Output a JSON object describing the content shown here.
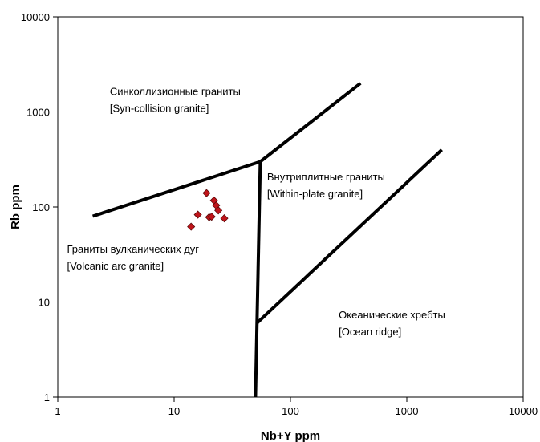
{
  "chart_data": {
    "type": "scatter",
    "title": "",
    "xlabel": "Nb+Y ppm",
    "ylabel": "Rb ppm",
    "xscale": "log",
    "yscale": "log",
    "xlim": [
      1,
      10000
    ],
    "ylim": [
      1,
      10000
    ],
    "grid": false,
    "legend": "none",
    "x_tick_labels": [
      "1",
      "10",
      "100",
      "1000",
      "10000"
    ],
    "y_tick_labels": [
      "1",
      "10",
      "100",
      "1000",
      "10000"
    ],
    "x_ticks": [
      1,
      10,
      100,
      1000,
      10000
    ],
    "y_ticks": [
      1,
      10,
      100,
      1000,
      10000
    ],
    "marker_color": "#c0141a",
    "points": [
      {
        "x": 14,
        "y": 62
      },
      {
        "x": 16,
        "y": 83
      },
      {
        "x": 19,
        "y": 140
      },
      {
        "x": 20,
        "y": 78
      },
      {
        "x": 21,
        "y": 79
      },
      {
        "x": 22,
        "y": 117
      },
      {
        "x": 23,
        "y": 104
      },
      {
        "x": 24,
        "y": 92
      },
      {
        "x": 27,
        "y": 76
      }
    ],
    "boundaries": [
      {
        "name": "vag-syncolg",
        "points": [
          [
            2,
            80
          ],
          [
            55,
            300
          ]
        ]
      },
      {
        "name": "syncolg-wpg",
        "points": [
          [
            55,
            300
          ],
          [
            400,
            2000
          ]
        ]
      },
      {
        "name": "vag-wpg",
        "points": [
          [
            55,
            300
          ],
          [
            50,
            1
          ]
        ]
      },
      {
        "name": "orig-vag",
        "points": [
          [
            51.5,
            6
          ],
          [
            2000,
            400
          ]
        ]
      }
    ],
    "region_labels": [
      {
        "id": "syncol",
        "lines": [
          "Синколлизионные граниты",
          "[Syn-collision granite]"
        ],
        "x": 2.8,
        "y": 1500
      },
      {
        "id": "wpg",
        "lines": [
          "Внутриплитные граниты",
          "[Within-plate granite]"
        ],
        "x": 63,
        "y": 190
      },
      {
        "id": "vag",
        "lines": [
          "Граниты вулканических дуг",
          "[Volcanic arc granite]"
        ],
        "x": 1.2,
        "y": 33
      },
      {
        "id": "orig",
        "lines": [
          "Океанические хребты",
          "[Ocean ridge]"
        ],
        "x": 260,
        "y": 6.7
      }
    ]
  }
}
